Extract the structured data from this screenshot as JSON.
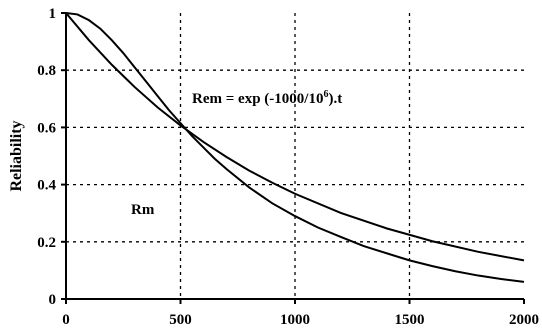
{
  "chart_data": {
    "type": "line",
    "title": "",
    "xlabel": "",
    "ylabel": "Reliability",
    "xlim": [
      0,
      2000
    ],
    "ylim": [
      0,
      1
    ],
    "x_ticks": [
      "0",
      "500",
      "1000",
      "1500",
      "2000"
    ],
    "y_ticks": [
      "0",
      "0.2",
      "0.4",
      "0.6",
      "0.8",
      "1"
    ],
    "grid": true,
    "annotations": {
      "rem_formula_prefix": "Rem = exp (-1000/10",
      "rem_formula_exp": "6",
      "rem_formula_suffix": ").t",
      "rm_label": "Rm"
    },
    "series": [
      {
        "x": [
          0,
          50,
          100,
          150,
          200,
          250,
          300,
          350,
          400,
          450,
          500,
          550,
          600,
          650,
          700,
          800,
          900,
          1000,
          1100,
          1200,
          1300,
          1400,
          1500,
          1600,
          1700,
          1800,
          1900,
          2000
        ],
        "values": [
          1.0,
          0.995,
          0.975,
          0.945,
          0.905,
          0.86,
          0.81,
          0.76,
          0.71,
          0.66,
          0.615,
          0.57,
          0.53,
          0.49,
          0.455,
          0.39,
          0.335,
          0.29,
          0.25,
          0.217,
          0.185,
          0.16,
          0.135,
          0.115,
          0.097,
          0.082,
          0.07,
          0.06
        ]
      },
      {
        "x": [
          0,
          100,
          200,
          300,
          400,
          500,
          600,
          700,
          800,
          900,
          1000,
          1200,
          1400,
          1600,
          1800,
          2000
        ],
        "values": [
          1.0,
          0.905,
          0.819,
          0.741,
          0.67,
          0.607,
          0.549,
          0.497,
          0.449,
          0.407,
          0.368,
          0.301,
          0.247,
          0.202,
          0.165,
          0.135
        ]
      }
    ]
  }
}
